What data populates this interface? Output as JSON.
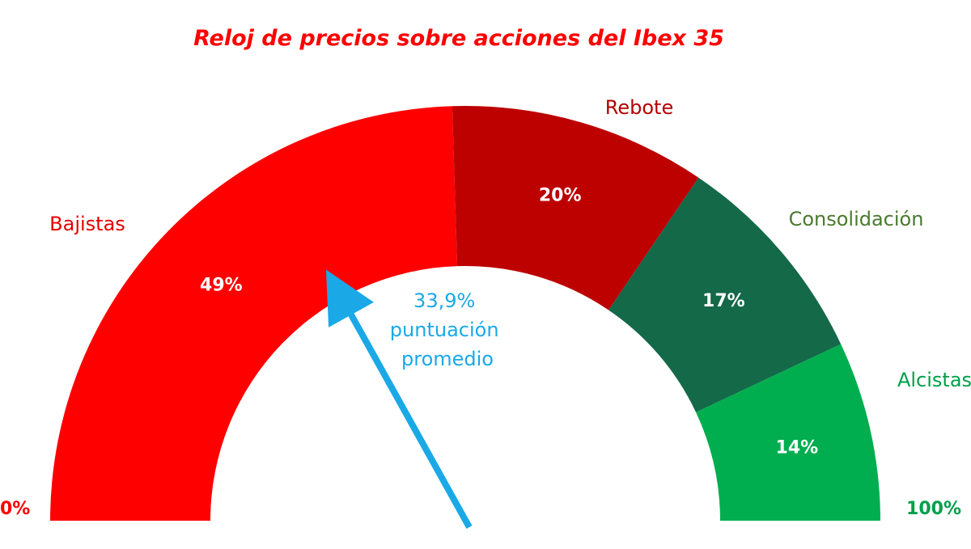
{
  "chart_data": {
    "type": "gauge",
    "title": "Reloj de precios sobre acciones del Ibex 35",
    "colors": {
      "title": "#ff0000",
      "score": "#1aa9e6",
      "pct_text": "#ffffff"
    },
    "segments": [
      {
        "name": "Bajistas",
        "value": 49,
        "value_label": "49%",
        "color": "#ff0000",
        "label_color": "#e60000"
      },
      {
        "name": "Rebote",
        "value": 20,
        "value_label": "20%",
        "color": "#bd0000",
        "label_color": "#b30000"
      },
      {
        "name": "Consolidación",
        "value": 17,
        "value_label": "17%",
        "color": "#136948",
        "label_color": "#4a7a2e"
      },
      {
        "name": "Alcistas",
        "value": 14,
        "value_label": "14%",
        "color": "#00ad4f",
        "label_color": "#00a04a"
      }
    ],
    "scale": {
      "min_label": "0%",
      "max_label": "100%",
      "min_color": "#ff0000",
      "max_color": "#00a04a"
    },
    "pointer": {
      "value": 33.9,
      "color": "#1aa9e6",
      "label_lines": [
        "33,9%",
        "puntuación",
        "promedio"
      ]
    }
  }
}
